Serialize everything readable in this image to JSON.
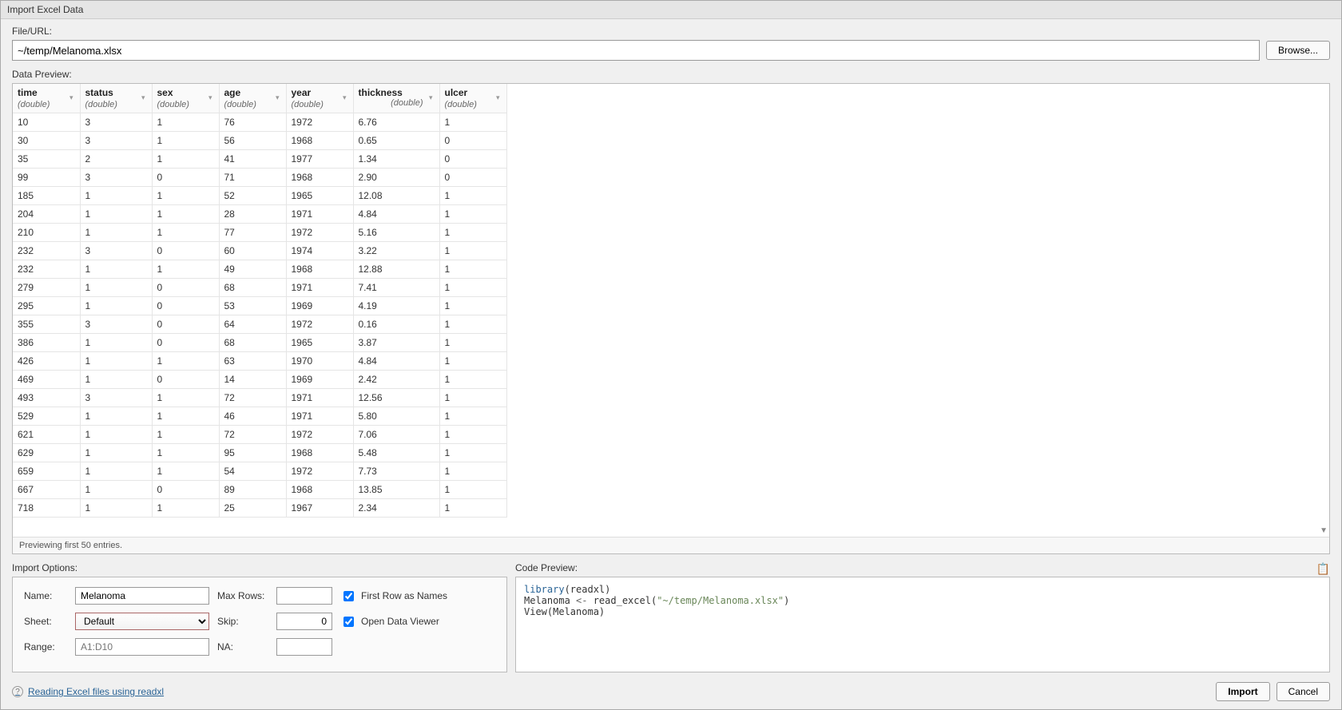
{
  "dialog": {
    "title": "Import Excel Data"
  },
  "file": {
    "label": "File/URL:",
    "value": "~/temp/Melanoma.xlsx",
    "browse_label": "Browse..."
  },
  "preview": {
    "label": "Data Preview:",
    "status": "Previewing first 50 entries.",
    "columns": [
      {
        "name": "time",
        "type": "(double)",
        "width_class": "col-time",
        "align": "left"
      },
      {
        "name": "status",
        "type": "(double)",
        "width_class": "col-status",
        "align": "left"
      },
      {
        "name": "sex",
        "type": "(double)",
        "width_class": "col-sex",
        "align": "left"
      },
      {
        "name": "age",
        "type": "(double)",
        "width_class": "col-age",
        "align": "left"
      },
      {
        "name": "year",
        "type": "(double)",
        "width_class": "col-year",
        "align": "left"
      },
      {
        "name": "thickness",
        "type": "(double)",
        "width_class": "col-thickness",
        "align": "right"
      },
      {
        "name": "ulcer",
        "type": "(double)",
        "width_class": "col-ulcer",
        "align": "left"
      }
    ],
    "rows": [
      [
        "10",
        "3",
        "1",
        "76",
        "1972",
        "6.76",
        "1"
      ],
      [
        "30",
        "3",
        "1",
        "56",
        "1968",
        "0.65",
        "0"
      ],
      [
        "35",
        "2",
        "1",
        "41",
        "1977",
        "1.34",
        "0"
      ],
      [
        "99",
        "3",
        "0",
        "71",
        "1968",
        "2.90",
        "0"
      ],
      [
        "185",
        "1",
        "1",
        "52",
        "1965",
        "12.08",
        "1"
      ],
      [
        "204",
        "1",
        "1",
        "28",
        "1971",
        "4.84",
        "1"
      ],
      [
        "210",
        "1",
        "1",
        "77",
        "1972",
        "5.16",
        "1"
      ],
      [
        "232",
        "3",
        "0",
        "60",
        "1974",
        "3.22",
        "1"
      ],
      [
        "232",
        "1",
        "1",
        "49",
        "1968",
        "12.88",
        "1"
      ],
      [
        "279",
        "1",
        "0",
        "68",
        "1971",
        "7.41",
        "1"
      ],
      [
        "295",
        "1",
        "0",
        "53",
        "1969",
        "4.19",
        "1"
      ],
      [
        "355",
        "3",
        "0",
        "64",
        "1972",
        "0.16",
        "1"
      ],
      [
        "386",
        "1",
        "0",
        "68",
        "1965",
        "3.87",
        "1"
      ],
      [
        "426",
        "1",
        "1",
        "63",
        "1970",
        "4.84",
        "1"
      ],
      [
        "469",
        "1",
        "0",
        "14",
        "1969",
        "2.42",
        "1"
      ],
      [
        "493",
        "3",
        "1",
        "72",
        "1971",
        "12.56",
        "1"
      ],
      [
        "529",
        "1",
        "1",
        "46",
        "1971",
        "5.80",
        "1"
      ],
      [
        "621",
        "1",
        "1",
        "72",
        "1972",
        "7.06",
        "1"
      ],
      [
        "629",
        "1",
        "1",
        "95",
        "1968",
        "5.48",
        "1"
      ],
      [
        "659",
        "1",
        "1",
        "54",
        "1972",
        "7.73",
        "1"
      ],
      [
        "667",
        "1",
        "0",
        "89",
        "1968",
        "13.85",
        "1"
      ],
      [
        "718",
        "1",
        "1",
        "25",
        "1967",
        "2.34",
        "1"
      ]
    ]
  },
  "options": {
    "label": "Import Options:",
    "name_label": "Name:",
    "name_value": "Melanoma",
    "sheet_label": "Sheet:",
    "sheet_value": "Default",
    "sheet_options": [
      "Default"
    ],
    "range_label": "Range:",
    "range_placeholder": "A1:D10",
    "maxrows_label": "Max Rows:",
    "maxrows_value": "",
    "skip_label": "Skip:",
    "skip_value": "0",
    "na_label": "NA:",
    "na_value": "",
    "first_row_label": "First Row as Names",
    "first_row_checked": true,
    "open_viewer_label": "Open Data Viewer",
    "open_viewer_checked": true
  },
  "code": {
    "label": "Code Preview:",
    "lines": {
      "l1a": "library",
      "l1b": "(readxl)",
      "l2a": "Melanoma ",
      "l2b": "<-",
      "l2c": " read_excel(",
      "l2d": "\"~/temp/Melanoma.xlsx\"",
      "l2e": ")",
      "l3": "View(Melanoma)"
    }
  },
  "footer": {
    "help_text": "Reading Excel files using readxl",
    "import_label": "Import",
    "cancel_label": "Cancel"
  },
  "colors": {
    "border": "#bbbbbb",
    "bg_panel": "#f0f0f0",
    "link": "#2a6496",
    "string": "#6a8759",
    "select_border": "#a66"
  }
}
